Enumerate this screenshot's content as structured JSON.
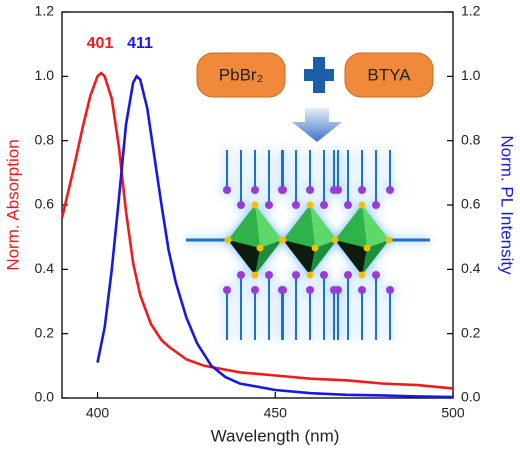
{
  "chart_data": {
    "type": "line",
    "x_label": "Wavelength (nm)",
    "y_label": "Norm. Absorption",
    "y2_label": "Norm. PL Intensity",
    "xlim": [
      390,
      500
    ],
    "xticks": [
      400,
      450,
      500
    ],
    "ylim": [
      0,
      1.2
    ],
    "yticks": [
      {
        "value": 0,
        "label": "0.0"
      },
      {
        "value": 0.2,
        "label": "0.2"
      },
      {
        "value": 0.4,
        "label": "0.4"
      },
      {
        "value": 0.6,
        "label": "0.6"
      },
      {
        "value": 0.8,
        "label": "0.8"
      },
      {
        "value": 1.0,
        "label": "1.0"
      },
      {
        "value": 1.2,
        "label": "1.2"
      }
    ],
    "y2lim": [
      0,
      1.2
    ],
    "y2ticks": [
      {
        "value": 0,
        "label": "0.0"
      },
      {
        "value": 0.2,
        "label": "0.2"
      },
      {
        "value": 0.4,
        "label": "0.4"
      },
      {
        "value": 0.6,
        "label": "0.6"
      },
      {
        "value": 0.8,
        "label": "0.8"
      },
      {
        "value": 1.0,
        "label": "1.0"
      },
      {
        "value": 1.2,
        "label": "1.2"
      }
    ],
    "series": [
      {
        "name": "Absorption",
        "color": "#ee1c1c",
        "axis": "y",
        "x": [
          390,
          393,
          396,
          398,
          400,
          401,
          402,
          404,
          406,
          408,
          410,
          412,
          415,
          418,
          420,
          425,
          430,
          440,
          450,
          460,
          470,
          480,
          490,
          500
        ],
        "values": [
          0.56,
          0.7,
          0.85,
          0.94,
          1.0,
          1.01,
          1.0,
          0.93,
          0.78,
          0.58,
          0.42,
          0.32,
          0.23,
          0.18,
          0.16,
          0.12,
          0.1,
          0.08,
          0.07,
          0.06,
          0.055,
          0.045,
          0.04,
          0.03
        ]
      },
      {
        "name": "PL",
        "color": "#1818e6",
        "axis": "y2",
        "x": [
          400,
          402,
          404,
          406,
          408,
          410,
          411,
          412,
          414,
          416,
          418,
          420,
          422,
          425,
          428,
          432,
          436,
          440,
          450,
          460,
          470,
          480,
          490,
          500
        ],
        "values": [
          0.11,
          0.22,
          0.4,
          0.62,
          0.85,
          0.98,
          1.0,
          0.99,
          0.9,
          0.75,
          0.6,
          0.46,
          0.36,
          0.25,
          0.17,
          0.1,
          0.065,
          0.045,
          0.025,
          0.015,
          0.01,
          0.008,
          0.005,
          0.003
        ]
      }
    ],
    "annotations": [
      "401",
      "411"
    ]
  },
  "diagram": {
    "reactants": [
      "PbBr₂",
      "BTYA"
    ]
  }
}
